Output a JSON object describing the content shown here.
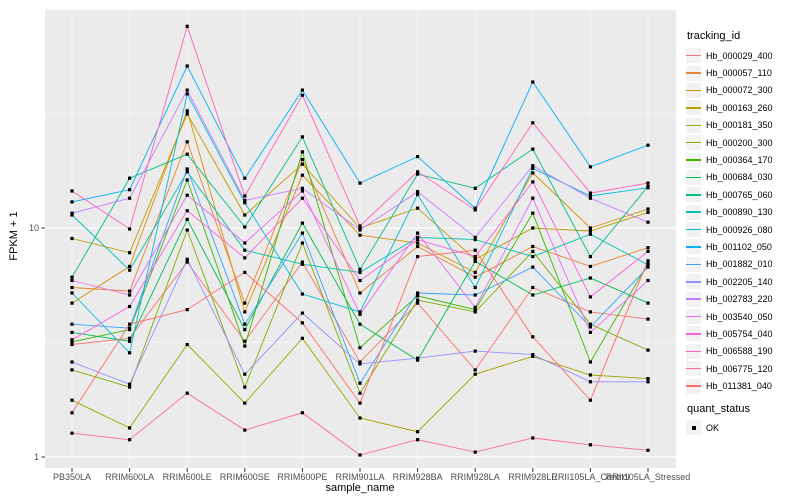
{
  "chart_data": {
    "type": "line",
    "title": "",
    "xlabel": "sample_name",
    "ylabel": "FPKM + 1",
    "y_scale": "log10",
    "ylim": [
      0.9,
      90
    ],
    "y_ticks": [
      {
        "value": 10,
        "label": "10"
      },
      {
        "value": 1,
        "label": "1"
      }
    ],
    "y_minor_ticks": [
      31.62,
      3.162
    ],
    "grid": true,
    "legend_position": "right",
    "legend_title": "tracking_id",
    "quant_status": {
      "title": "quant_status",
      "label": "OK",
      "marker": "black-square"
    },
    "categories": [
      "PB350LA",
      "RRIM600LA",
      "RRIM600LE",
      "RRIM600SE",
      "RRIM600PE",
      "RRIM901LA",
      "RRIM928BA",
      "RRIM928LA",
      "RRIM928LE",
      "RRII105LA_Control",
      "RRII105LA_Stressed"
    ],
    "series": [
      {
        "name": "Hb_000029_400",
        "color": "#F8766D",
        "values": [
          3.1,
          3.3,
          7.1,
          3.2,
          7.1,
          2.6,
          4.7,
          2.4,
          5.5,
          4.3,
          4.0
        ]
      },
      {
        "name": "Hb_000057_110",
        "color": "#EA8331",
        "values": [
          5.5,
          5.3,
          23.8,
          4.7,
          19.9,
          5.2,
          8.3,
          6.1,
          8.3,
          6.8,
          8.2
        ]
      },
      {
        "name": "Hb_000072_300",
        "color": "#D89000",
        "values": [
          4.7,
          6.8,
          32.5,
          4.3,
          17.0,
          9.3,
          8.6,
          6.4,
          17.4,
          10.0,
          12.1
        ]
      },
      {
        "name": "Hb_000163_260",
        "color": "#C09B00",
        "values": [
          9.0,
          7.8,
          31.5,
          11.4,
          19.0,
          10.0,
          12.2,
          7.3,
          10.0,
          9.7,
          11.7
        ]
      },
      {
        "name": "Hb_000181_350",
        "color": "#A3A500",
        "values": [
          1.77,
          1.34,
          3.1,
          1.72,
          3.3,
          1.48,
          1.29,
          2.3,
          2.75,
          2.28,
          2.2
        ]
      },
      {
        "name": "Hb_000200_300",
        "color": "#7CAE00",
        "values": [
          2.4,
          2.02,
          9.8,
          2.02,
          8.6,
          1.9,
          4.85,
          4.3,
          7.9,
          3.8,
          2.93
        ]
      },
      {
        "name": "Hb_000364_170",
        "color": "#39B600",
        "values": [
          3.18,
          3.6,
          16.2,
          3.05,
          21.5,
          3.0,
          5.05,
          4.4,
          11.6,
          2.6,
          7.0
        ]
      },
      {
        "name": "Hb_000684_030",
        "color": "#00BB4E",
        "values": [
          3.5,
          3.2,
          10.9,
          3.6,
          10.5,
          3.8,
          2.65,
          7.15,
          5.1,
          6.05,
          4.7
        ]
      },
      {
        "name": "Hb_000765_060",
        "color": "#00C087",
        "values": [
          6.1,
          16.5,
          21.0,
          10.1,
          25.0,
          6.6,
          17.2,
          14.9,
          22.1,
          7.5,
          15.2
        ]
      },
      {
        "name": "Hb_000890_130",
        "color": "#00C0AF",
        "values": [
          11.4,
          6.55,
          17.6,
          8.0,
          6.95,
          6.4,
          9.1,
          8.9,
          7.5,
          9.4,
          6.9
        ]
      },
      {
        "name": "Hb_000926_080",
        "color": "#00BCD8",
        "values": [
          5.2,
          2.85,
          38.5,
          12.9,
          5.15,
          4.3,
          14.0,
          5.5,
          18.2,
          13.8,
          15.0
        ]
      },
      {
        "name": "Hb_001102_050",
        "color": "#00B0F6",
        "values": [
          13.0,
          14.7,
          51.0,
          16.5,
          40.0,
          15.7,
          20.5,
          12.2,
          43.4,
          18.5,
          23.0
        ]
      },
      {
        "name": "Hb_001882_010",
        "color": "#35A2FF",
        "values": [
          3.8,
          3.65,
          18.1,
          3.8,
          9.5,
          2.1,
          5.2,
          5.1,
          6.75,
          3.7,
          6.75
        ]
      },
      {
        "name": "Hb_002205_140",
        "color": "#9590FF",
        "values": [
          2.6,
          2.08,
          7.3,
          2.3,
          4.25,
          2.55,
          2.7,
          2.9,
          2.8,
          2.13,
          2.13
        ]
      },
      {
        "name": "Hb_002783_220",
        "color": "#C77CFF",
        "values": [
          11.6,
          13.5,
          40.0,
          13.2,
          14.9,
          9.8,
          14.4,
          9.1,
          18.7,
          13.5,
          10.6
        ]
      },
      {
        "name": "Hb_003540_050",
        "color": "#E76BF3",
        "values": [
          5.9,
          5.1,
          13.9,
          8.6,
          14.5,
          4.2,
          9.5,
          4.5,
          13.5,
          3.5,
          5.9
        ]
      },
      {
        "name": "Hb_005754_040",
        "color": "#FA62DB",
        "values": [
          3.25,
          4.54,
          11.9,
          7.4,
          13.5,
          5.9,
          8.9,
          7.5,
          15.9,
          5.0,
          7.9
        ]
      },
      {
        "name": "Hb_006588_190",
        "color": "#FF62BC",
        "values": [
          14.5,
          9.9,
          76.0,
          13.8,
          38.0,
          10.2,
          17.6,
          12.0,
          28.8,
          14.2,
          15.7
        ]
      },
      {
        "name": "Hb_006775_120",
        "color": "#FF6A98",
        "values": [
          1.27,
          1.19,
          1.9,
          1.31,
          1.56,
          1.02,
          1.19,
          1.05,
          1.21,
          1.13,
          1.07
        ]
      },
      {
        "name": "Hb_011381_040",
        "color": "#FF6C67",
        "values": [
          1.56,
          3.8,
          4.4,
          6.4,
          3.85,
          1.72,
          7.5,
          8.0,
          3.35,
          1.77,
          7.2
        ]
      }
    ]
  },
  "colors": {
    "panel_background": "#EBEBEB",
    "gridline": "#FFFFFF",
    "axis_text": "#4D4D4D",
    "tick_mark": "#333333",
    "point": "#000000"
  }
}
